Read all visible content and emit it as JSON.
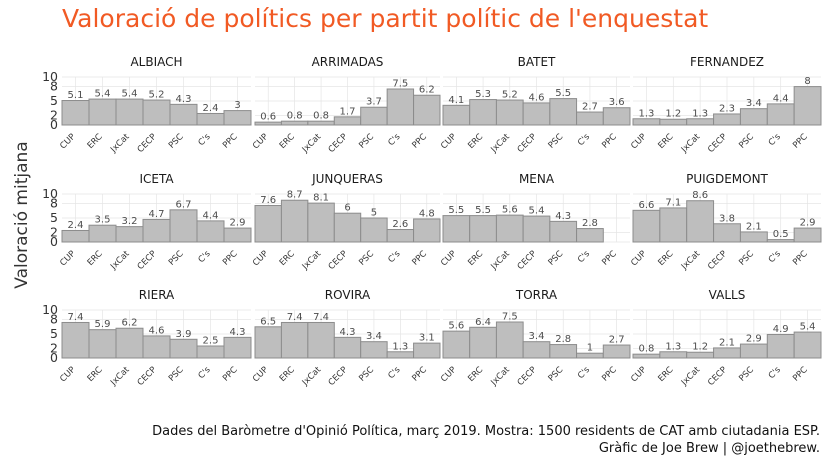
{
  "title": "Valoració de polítics per partit polític de l'enquestat",
  "ylabel": "Valoració mitjana",
  "caption": {
    "line1": "Dades del Baròmetre d'Opinió Política, març 2019. Mostra: 1500 residents de CAT amb ciutadania ESP.",
    "line2": "Gràfic de Joe Brew | @joethebrew."
  },
  "colors": {
    "bar_fill": "#BEBEBE",
    "bar_stroke": "#8C8C8C",
    "grid": "#E5E5E5",
    "title": "#F15A24"
  },
  "chart_data": {
    "type": "bar",
    "facet_layout": {
      "columns": 4,
      "rows": 3
    },
    "categories": [
      "CUP",
      "ERC",
      "JxCat",
      "CECP",
      "PSC",
      "C's",
      "PPC"
    ],
    "ylim": [
      0,
      10
    ],
    "yticks": [
      0,
      2,
      5,
      8,
      10
    ],
    "grid": true,
    "ylabel": "Valoració mitjana",
    "panels": [
      {
        "name": "ALBIACH",
        "values": [
          5.1,
          5.4,
          5.4,
          5.2,
          4.3,
          2.4,
          3.0
        ]
      },
      {
        "name": "ARRIMADAS",
        "values": [
          0.6,
          0.8,
          0.8,
          1.7,
          3.7,
          7.5,
          6.2
        ]
      },
      {
        "name": "BATET",
        "values": [
          4.1,
          5.3,
          5.2,
          4.6,
          5.5,
          2.7,
          3.6
        ]
      },
      {
        "name": "FERNANDEZ",
        "values": [
          1.3,
          1.2,
          1.3,
          2.3,
          3.4,
          4.4,
          8.0
        ]
      },
      {
        "name": "ICETA",
        "values": [
          2.4,
          3.5,
          3.2,
          4.7,
          6.7,
          4.4,
          2.9
        ]
      },
      {
        "name": "JUNQUERAS",
        "values": [
          7.6,
          8.7,
          8.1,
          6.0,
          5.0,
          2.6,
          4.8
        ]
      },
      {
        "name": "MENA",
        "values": [
          5.5,
          5.5,
          5.6,
          5.4,
          4.3,
          2.8,
          null
        ]
      },
      {
        "name": "PUIGDEMONT",
        "values": [
          6.6,
          7.1,
          8.6,
          3.8,
          2.1,
          0.5,
          2.9
        ]
      },
      {
        "name": "RIERA",
        "values": [
          7.4,
          5.9,
          6.2,
          4.6,
          3.9,
          2.5,
          4.3
        ]
      },
      {
        "name": "ROVIRA",
        "values": [
          6.5,
          7.4,
          7.4,
          4.3,
          3.4,
          1.3,
          3.1
        ]
      },
      {
        "name": "TORRA",
        "values": [
          5.6,
          6.4,
          7.5,
          3.4,
          2.8,
          1.0,
          2.7
        ]
      },
      {
        "name": "VALLS",
        "values": [
          0.8,
          1.3,
          1.2,
          2.1,
          2.9,
          4.9,
          5.4
        ]
      }
    ]
  }
}
